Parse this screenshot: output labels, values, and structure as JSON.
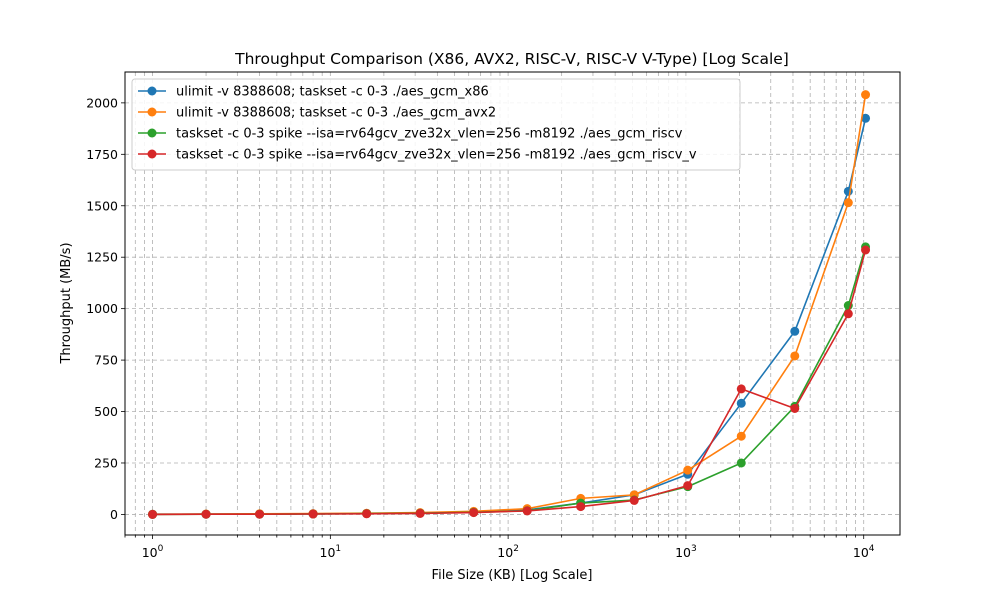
{
  "chart_data": {
    "type": "line",
    "title": "Throughput Comparison (X86, AVX2, RISC-V, RISC-V V-Type) [Log Scale]",
    "xlabel": "File Size (KB) [Log Scale]",
    "ylabel": "Throughput (MB/s)",
    "x_scale": "log",
    "xlim": [
      0.7,
      16000
    ],
    "ylim": [
      -100,
      2150
    ],
    "x_ticks": [
      {
        "value": 1,
        "base": "10",
        "exp": "0"
      },
      {
        "value": 10,
        "base": "10",
        "exp": "1"
      },
      {
        "value": 100,
        "base": "10",
        "exp": "2"
      },
      {
        "value": 1000,
        "base": "10",
        "exp": "3"
      },
      {
        "value": 10000,
        "base": "10",
        "exp": "4"
      }
    ],
    "y_ticks": [
      {
        "value": 0,
        "label": "0"
      },
      {
        "value": 250,
        "label": "250"
      },
      {
        "value": 500,
        "label": "500"
      },
      {
        "value": 750,
        "label": "750"
      },
      {
        "value": 1000,
        "label": "1000"
      },
      {
        "value": 1250,
        "label": "1250"
      },
      {
        "value": 1500,
        "label": "1500"
      },
      {
        "value": 1750,
        "label": "1750"
      },
      {
        "value": 2000,
        "label": "2000"
      }
    ],
    "grid": true,
    "legend_position": "upper-left",
    "x": [
      1,
      2,
      4,
      8,
      16,
      32,
      64,
      128,
      256,
      512,
      1024,
      2048,
      4096,
      8192,
      10240
    ],
    "series": [
      {
        "name": "ulimit -v 8388608; taskset -c 0-3 ./aes_gcm_x86",
        "color": "#1f77b4",
        "values": [
          1,
          1,
          2,
          3,
          5,
          7,
          12,
          22,
          55,
          95,
          195,
          540,
          890,
          1570,
          1925
        ]
      },
      {
        "name": "ulimit -v 8388608; taskset -c 0-3 ./aes_gcm_avx2",
        "color": "#ff7f0e",
        "values": [
          1,
          2,
          3,
          4,
          6,
          9,
          15,
          28,
          78,
          95,
          215,
          380,
          770,
          1515,
          2040
        ]
      },
      {
        "name": "taskset -c 0-3 spike --isa=rv64gcv_zve32x_vlen=256 -m8192 ./aes_gcm_riscv",
        "color": "#2ca02c",
        "values": [
          0,
          1,
          1,
          2,
          4,
          6,
          10,
          18,
          55,
          70,
          135,
          250,
          525,
          1015,
          1300
        ]
      },
      {
        "name": "taskset -c 0-3 spike --isa=rv64gcv_zve32x_vlen=256 -m8192 ./aes_gcm_riscv_v",
        "color": "#d62728",
        "values": [
          0,
          1,
          1,
          2,
          3,
          5,
          9,
          17,
          38,
          68,
          140,
          610,
          515,
          975,
          1285
        ]
      }
    ]
  }
}
